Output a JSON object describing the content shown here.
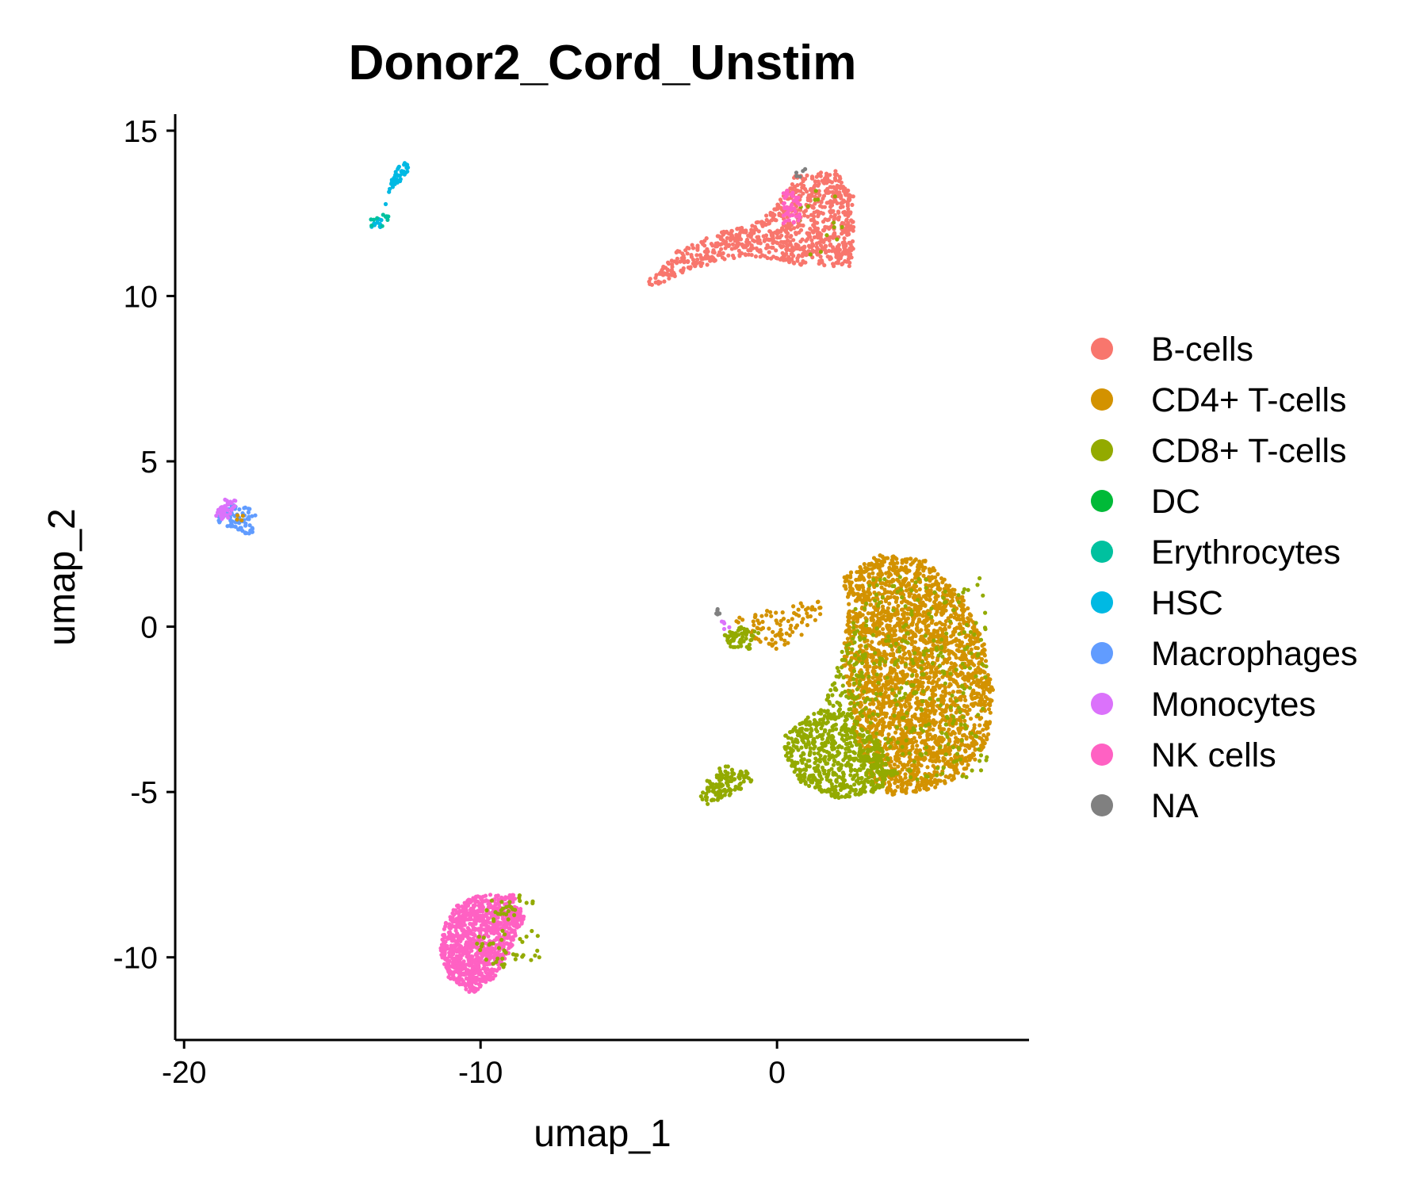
{
  "chart_data": {
    "type": "scatter",
    "title": "Donor2_Cord_Unstim",
    "xlabel": "umap_1",
    "ylabel": "umap_2",
    "xlim": [
      -20.3,
      8.5
    ],
    "ylim": [
      -12.5,
      15.5
    ],
    "xticks": [
      -20,
      -10,
      0
    ],
    "xtick_labels": [
      "-20",
      "-10",
      "0"
    ],
    "yticks": [
      15,
      10,
      5,
      0,
      -5,
      -10
    ],
    "ytick_labels": [
      "15",
      "10",
      "5",
      "0",
      "-5",
      "-10"
    ],
    "grid": false,
    "legend_position": "right",
    "legend": [
      {
        "name": "B-cells",
        "color": "#F8766D"
      },
      {
        "name": "CD4+ T-cells",
        "color": "#D39200"
      },
      {
        "name": "CD8+ T-cells",
        "color": "#93AA00"
      },
      {
        "name": "DC",
        "color": "#00BA38"
      },
      {
        "name": "Erythrocytes",
        "color": "#00C19F"
      },
      {
        "name": "HSC",
        "color": "#00B9E3"
      },
      {
        "name": "Macrophages",
        "color": "#619CFF"
      },
      {
        "name": "Monocytes",
        "color": "#DB72FB"
      },
      {
        "name": "NK cells",
        "color": "#FF61C3"
      },
      {
        "name": "NA",
        "color": "#808080"
      }
    ],
    "clusters": [
      {
        "series": "B-cells",
        "shape": "polygon",
        "n": 900,
        "poly": [
          [
            -4.3,
            10.2
          ],
          [
            -3.0,
            10.8
          ],
          [
            -1.0,
            11.2
          ],
          [
            0.5,
            11.0
          ],
          [
            1.0,
            10.9
          ],
          [
            2.5,
            10.9
          ],
          [
            2.6,
            11.5
          ],
          [
            2.6,
            13.0
          ],
          [
            2.0,
            13.8
          ],
          [
            0.6,
            13.7
          ],
          [
            0.2,
            13.0
          ],
          [
            -0.5,
            12.3
          ],
          [
            -2.0,
            11.9
          ],
          [
            -3.5,
            11.3
          ],
          [
            -4.4,
            10.4
          ]
        ]
      },
      {
        "series": "CD8+ T-cells",
        "shape": "polygon",
        "n": 15,
        "poly": [
          [
            0.5,
            11.2
          ],
          [
            2.5,
            11.2
          ],
          [
            2.5,
            13.3
          ],
          [
            0.5,
            13.3
          ]
        ]
      },
      {
        "series": "NK cells",
        "shape": "polygon",
        "n": 45,
        "poly": [
          [
            0.2,
            12.2
          ],
          [
            0.8,
            12.2
          ],
          [
            0.8,
            13.2
          ],
          [
            0.2,
            13.2
          ]
        ]
      },
      {
        "series": "NA",
        "shape": "polygon",
        "n": 6,
        "poly": [
          [
            0.5,
            13.6
          ],
          [
            1.0,
            13.6
          ],
          [
            1.0,
            13.85
          ],
          [
            0.5,
            13.85
          ]
        ]
      },
      {
        "series": "HSC",
        "shape": "polygon",
        "n": 55,
        "poly": [
          [
            -13.6,
            12.2
          ],
          [
            -13.2,
            12.6
          ],
          [
            -13.0,
            13.6
          ],
          [
            -12.6,
            14.1
          ],
          [
            -12.3,
            13.8
          ],
          [
            -12.8,
            13.4
          ],
          [
            -13.2,
            12.8
          ],
          [
            -13.4,
            12.0
          ],
          [
            -13.7,
            12.1
          ]
        ]
      },
      {
        "series": "Erythrocytes",
        "shape": "polygon",
        "n": 10,
        "poly": [
          [
            -13.7,
            12.0
          ],
          [
            -13.1,
            12.0
          ],
          [
            -13.1,
            12.5
          ],
          [
            -13.7,
            12.5
          ]
        ]
      },
      {
        "series": "Macrophages",
        "shape": "polygon",
        "n": 80,
        "poly": [
          [
            -18.9,
            3.3
          ],
          [
            -18.4,
            3.7
          ],
          [
            -17.8,
            3.6
          ],
          [
            -17.5,
            3.4
          ],
          [
            -17.7,
            2.7
          ],
          [
            -18.3,
            3.0
          ],
          [
            -18.9,
            3.1
          ]
        ]
      },
      {
        "series": "Monocytes",
        "shape": "polygon",
        "n": 40,
        "poly": [
          [
            -19.0,
            3.3
          ],
          [
            -18.6,
            3.9
          ],
          [
            -18.2,
            3.8
          ],
          [
            -18.5,
            3.2
          ]
        ]
      },
      {
        "series": "CD4+ T-cells",
        "shape": "polygon",
        "n": 4,
        "poly": [
          [
            -18.3,
            3.1
          ],
          [
            -18.0,
            3.1
          ],
          [
            -18.0,
            3.4
          ],
          [
            -18.3,
            3.4
          ]
        ]
      },
      {
        "series": "CD4+ T-cells",
        "shape": "polygon",
        "n": 2600,
        "poly": [
          [
            2.2,
            1.5
          ],
          [
            3.5,
            2.2
          ],
          [
            5.0,
            2.0
          ],
          [
            6.2,
            1.0
          ],
          [
            7.0,
            -0.5
          ],
          [
            7.3,
            -2.0
          ],
          [
            7.1,
            -3.5
          ],
          [
            6.3,
            -4.5
          ],
          [
            5.0,
            -5.0
          ],
          [
            3.8,
            -5.1
          ],
          [
            3.0,
            -4.5
          ],
          [
            2.6,
            -3.0
          ],
          [
            2.2,
            -1.0
          ],
          [
            2.4,
            0.5
          ]
        ]
      },
      {
        "series": "CD8+ T-cells",
        "shape": "polygon",
        "n": 650,
        "poly": [
          [
            0.2,
            -3.3
          ],
          [
            1.2,
            -2.6
          ],
          [
            2.4,
            -2.6
          ],
          [
            3.4,
            -3.4
          ],
          [
            4.0,
            -4.4
          ],
          [
            3.4,
            -5.0
          ],
          [
            2.0,
            -5.2
          ],
          [
            0.8,
            -4.7
          ],
          [
            0.3,
            -4.0
          ]
        ]
      },
      {
        "series": "CD8+ T-cells",
        "shape": "polygon",
        "n": 90,
        "poly": [
          [
            1.4,
            -2.6
          ],
          [
            2.6,
            0.2
          ],
          [
            3.0,
            0.0
          ],
          [
            3.0,
            -2.6
          ],
          [
            2.2,
            -2.8
          ]
        ]
      },
      {
        "series": "CD8+ T-cells",
        "shape": "polygon",
        "n": 280,
        "poly": [
          [
            2.6,
            1.5
          ],
          [
            7.0,
            1.5
          ],
          [
            7.2,
            -4.5
          ],
          [
            3.2,
            -4.8
          ],
          [
            2.4,
            -1.0
          ]
        ]
      },
      {
        "series": "CD8+ T-cells",
        "shape": "polygon",
        "n": 120,
        "poly": [
          [
            -2.6,
            -5.2
          ],
          [
            -2.3,
            -4.5
          ],
          [
            -1.8,
            -4.2
          ],
          [
            -1.0,
            -4.3
          ],
          [
            -0.8,
            -4.7
          ],
          [
            -1.6,
            -5.1
          ],
          [
            -2.3,
            -5.4
          ]
        ]
      },
      {
        "series": "CD4+ T-cells",
        "shape": "polygon",
        "n": 90,
        "poly": [
          [
            -1.5,
            0.3
          ],
          [
            -0.5,
            0.6
          ],
          [
            0.8,
            0.8
          ],
          [
            1.5,
            0.9
          ],
          [
            1.5,
            0.2
          ],
          [
            0.6,
            -0.4
          ],
          [
            0.0,
            -0.7
          ],
          [
            -0.6,
            -0.5
          ],
          [
            -1.4,
            -0.1
          ]
        ]
      },
      {
        "series": "CD8+ T-cells",
        "shape": "polygon",
        "n": 60,
        "poly": [
          [
            -1.8,
            -0.2
          ],
          [
            -1.2,
            0.0
          ],
          [
            -0.6,
            -0.2
          ],
          [
            -0.9,
            -0.7
          ],
          [
            -1.6,
            -0.6
          ]
        ]
      },
      {
        "series": "NA",
        "shape": "polygon",
        "n": 6,
        "poly": [
          [
            -2.1,
            0.3
          ],
          [
            -1.9,
            0.3
          ],
          [
            -1.9,
            0.75
          ],
          [
            -2.1,
            0.75
          ]
        ]
      },
      {
        "series": "Monocytes",
        "shape": "polygon",
        "n": 5,
        "poly": [
          [
            -1.9,
            -0.1
          ],
          [
            -1.6,
            -0.1
          ],
          [
            -1.6,
            0.2
          ],
          [
            -1.9,
            0.2
          ]
        ]
      },
      {
        "series": "NK cells",
        "shape": "polygon",
        "n": 1000,
        "poly": [
          [
            -11.2,
            -9.0
          ],
          [
            -10.8,
            -8.4
          ],
          [
            -10.0,
            -8.1
          ],
          [
            -8.8,
            -8.1
          ],
          [
            -8.5,
            -8.8
          ],
          [
            -9.0,
            -9.8
          ],
          [
            -9.6,
            -10.7
          ],
          [
            -10.3,
            -11.1
          ],
          [
            -11.1,
            -10.6
          ],
          [
            -11.4,
            -9.8
          ]
        ]
      },
      {
        "series": "CD8+ T-cells",
        "shape": "polygon",
        "n": 65,
        "poly": [
          [
            -10.3,
            -8.4
          ],
          [
            -8.2,
            -8.0
          ],
          [
            -8.0,
            -10.0
          ],
          [
            -9.6,
            -10.5
          ],
          [
            -10.2,
            -9.5
          ]
        ]
      }
    ]
  }
}
